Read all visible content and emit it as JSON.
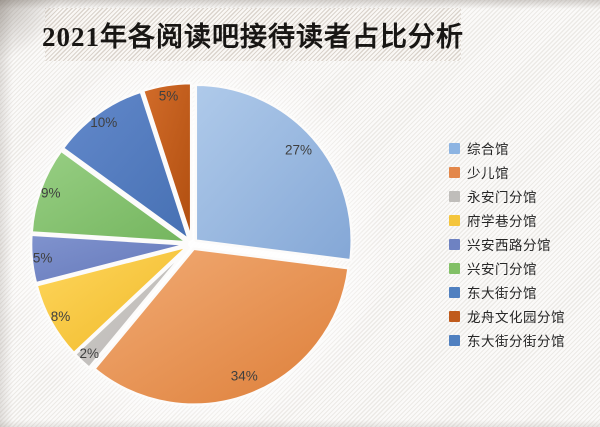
{
  "title": "2021年各阅读吧接待读者占比分析",
  "chart_data": {
    "type": "pie",
    "title": "2021年各阅读吧接待读者占比分析",
    "legend_position": "right",
    "start_angle_deg": 0,
    "direction": "clockwise",
    "label_color": "#3F3F3F",
    "series": [
      {
        "label": "综合馆",
        "value": 27,
        "pct_label": "27%",
        "legend_color": "#8DB4E2",
        "color_light": "#AFCAEA",
        "color_dark": "#84A7D6"
      },
      {
        "label": "少儿馆",
        "value": 34,
        "pct_label": "34%",
        "legend_color": "#E3874A",
        "color_light": "#F2AC76",
        "color_dark": "#DD7E38"
      },
      {
        "label": "永安门分馆",
        "value": 2,
        "pct_label": "2%",
        "legend_color": "#BFBDBA",
        "color_light": "#D0CDCA",
        "color_dark": "#B8B5B2"
      },
      {
        "label": "府学巷分馆",
        "value": 8,
        "pct_label": "8%",
        "legend_color": "#F4C53C",
        "color_light": "#FFD75E",
        "color_dark": "#EFB827"
      },
      {
        "label": "兴安西路分馆",
        "value": 5,
        "pct_label": "5%",
        "legend_color": "#6E82C2",
        "color_light": "#8093CE",
        "color_dark": "#6377B9"
      },
      {
        "label": "兴安门分馆",
        "value": 9,
        "pct_label": "9%",
        "legend_color": "#82C066",
        "color_light": "#98CF84",
        "color_dark": "#74B55E"
      },
      {
        "label": "东大街分馆",
        "value": 10,
        "pct_label": "10%",
        "legend_color": "#5080C0",
        "color_light": "#6389CB",
        "color_dark": "#4670B3"
      },
      {
        "label": "龙舟文化园分馆",
        "value": 5,
        "pct_label": "5%",
        "legend_color": "#C05B1C",
        "color_light": "#D26C2A",
        "color_dark": "#B04E0F"
      },
      {
        "label": "东大街分街分馆",
        "value": 0,
        "pct_label": "",
        "legend_color": "#5080C0",
        "color_light": "#6389CB",
        "color_dark": "#4670B3"
      }
    ]
  }
}
